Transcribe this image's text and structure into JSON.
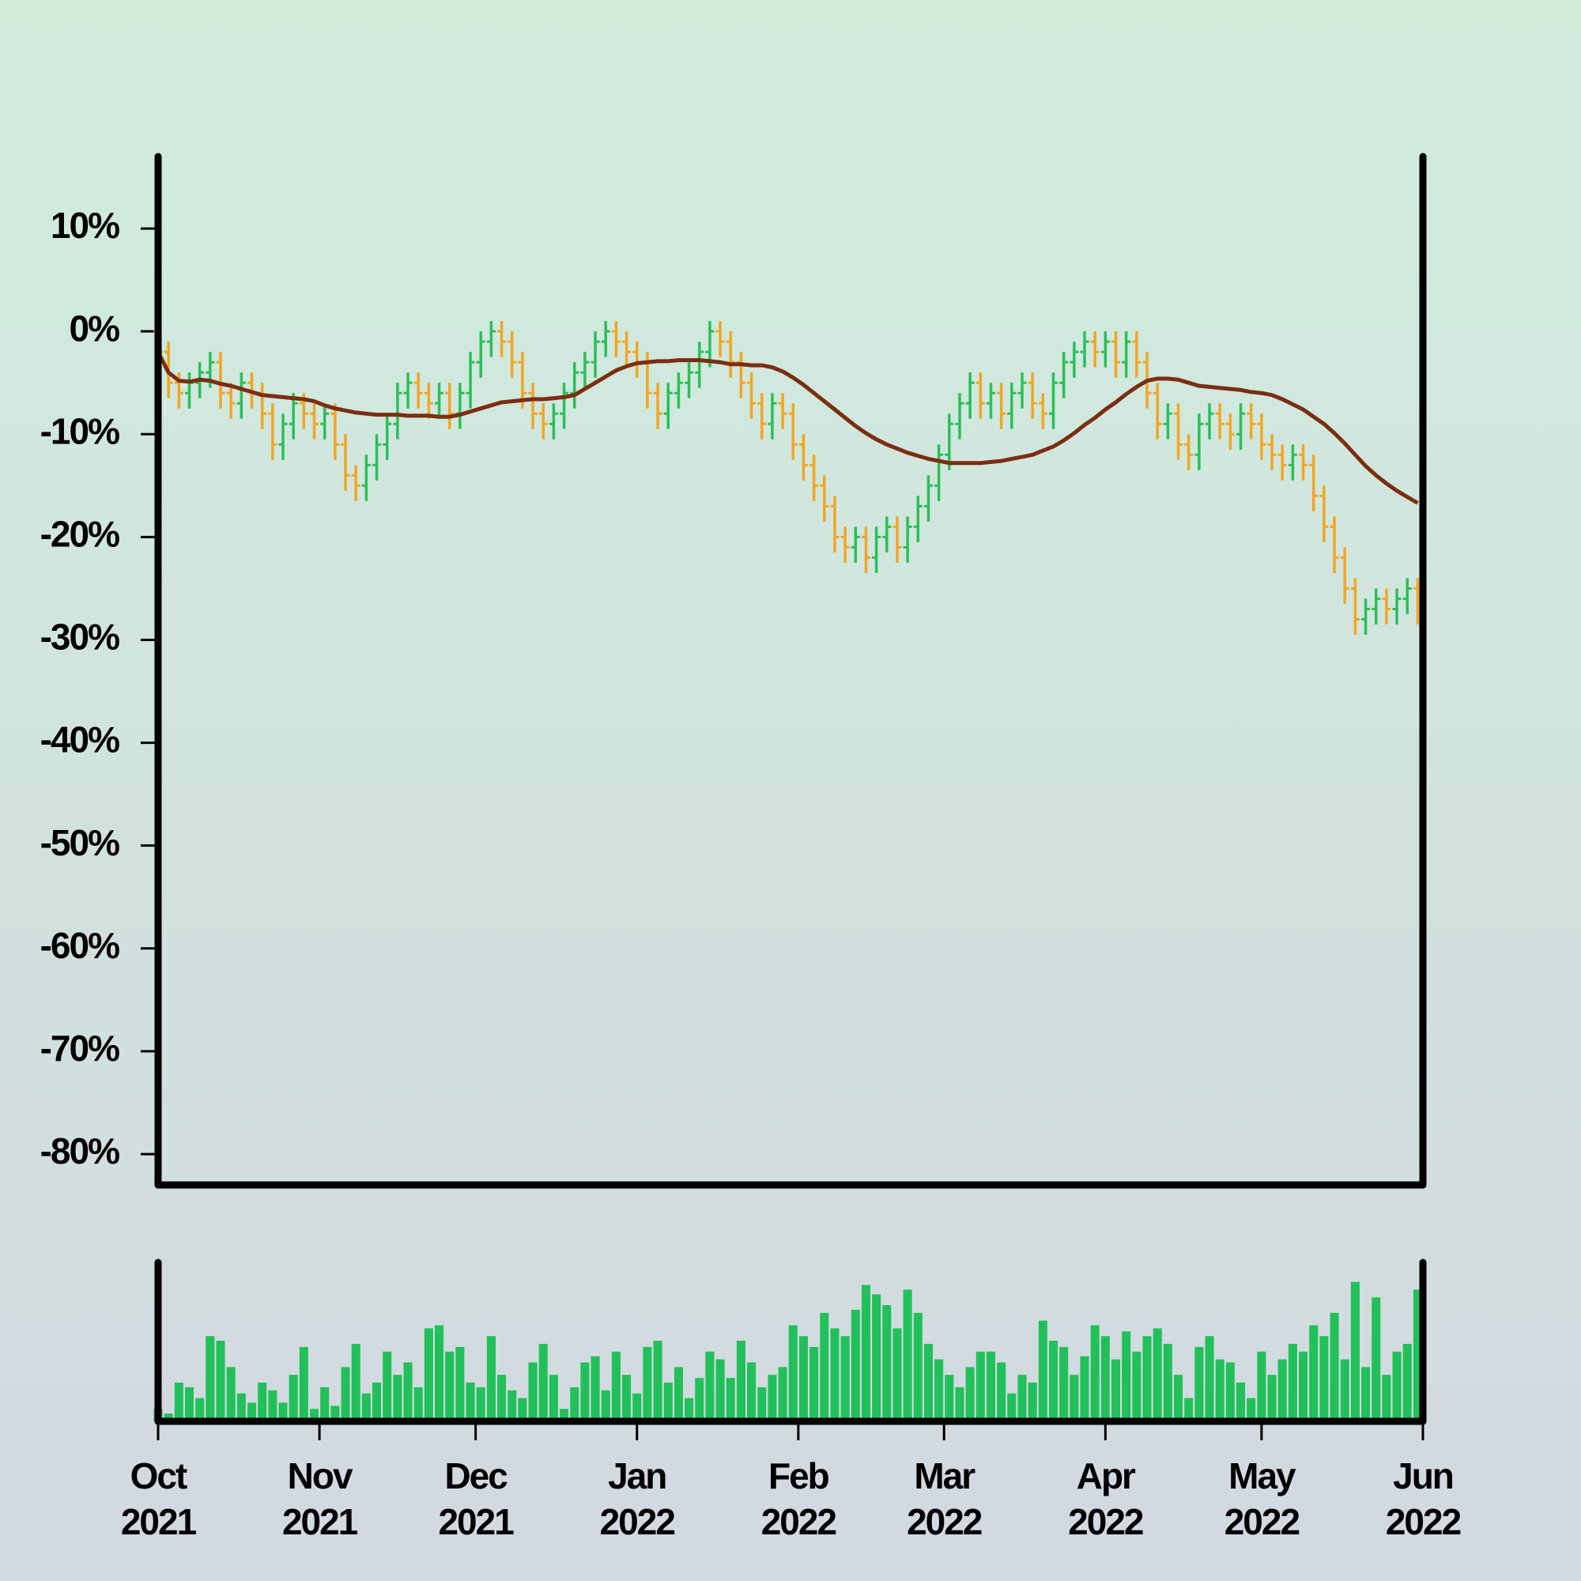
{
  "chart_data": {
    "type": "ohlc",
    "ylim": [
      -83,
      17
    ],
    "yticks": [
      {
        "value": 10,
        "label": "10%"
      },
      {
        "value": 0,
        "label": "0%"
      },
      {
        "value": -10,
        "label": "-10%"
      },
      {
        "value": -20,
        "label": "-20%"
      },
      {
        "value": -30,
        "label": "-30%"
      },
      {
        "value": -40,
        "label": "-40%"
      },
      {
        "value": -50,
        "label": "-50%"
      },
      {
        "value": -60,
        "label": "-60%"
      },
      {
        "value": -70,
        "label": "-70%"
      },
      {
        "value": -80,
        "label": "-80%"
      }
    ],
    "xlim": [
      0,
      121.5
    ],
    "xticks": [
      {
        "value": 0,
        "label": "Oct\n2021"
      },
      {
        "value": 15.5,
        "label": "Nov\n2021"
      },
      {
        "value": 30.5,
        "label": "Dec\n2021"
      },
      {
        "value": 46,
        "label": "Jan\n2022"
      },
      {
        "value": 61.5,
        "label": "Feb\n2022"
      },
      {
        "value": 75.5,
        "label": "Mar\n2022"
      },
      {
        "value": 91,
        "label": "Apr\n2022"
      },
      {
        "value": 106,
        "label": "May\n2022"
      },
      {
        "value": 121.5,
        "label": "Jun\n2022"
      }
    ],
    "up_color": "#2bbf5a",
    "down_color": "#f2a623",
    "open": [
      0,
      -2,
      -5,
      -6,
      -5,
      -4,
      -3,
      -6,
      -7,
      -5,
      -6,
      -8,
      -11,
      -9,
      -7,
      -8,
      -9,
      -8,
      -11,
      -14,
      -15,
      -13,
      -11,
      -9,
      -6,
      -5,
      -6,
      -7,
      -6,
      -8,
      -6,
      -3,
      -1,
      0,
      -1,
      -3,
      -6,
      -8,
      -9,
      -8,
      -6,
      -4,
      -3,
      -1,
      0,
      -1,
      -2,
      -3,
      -6,
      -8,
      -6,
      -5,
      -4,
      -2,
      0,
      -1,
      -3,
      -5,
      -7,
      -9,
      -7,
      -8,
      -11,
      -13,
      -15,
      -17,
      -20,
      -21,
      -20,
      -22,
      -20,
      -19,
      -21,
      -19,
      -17,
      -15,
      -12,
      -9,
      -7,
      -5,
      -7,
      -6,
      -8,
      -6,
      -5,
      -7,
      -8,
      -5,
      -3,
      -2,
      -1,
      -2,
      -1,
      -3,
      -1,
      -3,
      -6,
      -9,
      -8,
      -11,
      -12,
      -9,
      -8,
      -9,
      -10,
      -8,
      -9,
      -11,
      -12,
      -13,
      -12,
      -13,
      -16,
      -19,
      -22,
      -25,
      -28,
      -27,
      -26,
      -27,
      -26,
      -25
    ],
    "high": [
      1,
      -1,
      -4,
      -4,
      -3,
      -2,
      -2,
      -5,
      -4,
      -4,
      -5,
      -7,
      -8,
      -6,
      -6,
      -7,
      -7,
      -7,
      -10,
      -13,
      -12,
      -10,
      -8,
      -5,
      -4,
      -4,
      -5,
      -5,
      -5,
      -5,
      -2,
      0,
      1,
      1,
      0,
      -2,
      -5,
      -7,
      -7,
      -5,
      -3,
      -2,
      0,
      1,
      1,
      0,
      -1,
      -2,
      -5,
      -5,
      -4,
      -3,
      -1,
      1,
      1,
      0,
      -2,
      -4,
      -6,
      -6,
      -6,
      -7,
      -10,
      -12,
      -14,
      -16,
      -19,
      -19,
      -19,
      -19,
      -18,
      -18,
      -18,
      -16,
      -14,
      -11,
      -8,
      -6,
      -4,
      -4,
      -5,
      -5,
      -5,
      -4,
      -4,
      -6,
      -4,
      -2,
      -1,
      0,
      0,
      0,
      0,
      0,
      0,
      -2,
      -5,
      -7,
      -7,
      -10,
      -8,
      -7,
      -7,
      -8,
      -7,
      -7,
      -8,
      -10,
      -11,
      -11,
      -11,
      -12,
      -15,
      -18,
      -21,
      -24,
      -26,
      -25,
      -25,
      -25,
      -24,
      -24
    ],
    "low": [
      -3.5,
      -6.5,
      -7.5,
      -7.5,
      -6.5,
      -5.5,
      -7.5,
      -8.5,
      -8.5,
      -7.5,
      -9.5,
      -12.5,
      -12.5,
      -10.5,
      -9.5,
      -10.5,
      -10.5,
      -12.5,
      -15.5,
      -16.5,
      -16.5,
      -14.5,
      -12.5,
      -10.5,
      -7.5,
      -7.5,
      -8.5,
      -8.5,
      -9.5,
      -9.5,
      -7.5,
      -4.5,
      -2.5,
      -2.5,
      -4.5,
      -7.5,
      -9.5,
      -10.5,
      -10.5,
      -9.5,
      -7.5,
      -5.5,
      -4.5,
      -2.5,
      -2.5,
      -3.5,
      -4.5,
      -7.5,
      -9.5,
      -9.5,
      -7.5,
      -6.5,
      -5.5,
      -3.5,
      -2.5,
      -4.5,
      -6.5,
      -8.5,
      -10.5,
      -10.5,
      -9.5,
      -12.5,
      -14.5,
      -16.5,
      -18.5,
      -21.5,
      -22.5,
      -22.5,
      -23.5,
      -23.5,
      -21.5,
      -22.5,
      -22.5,
      -20.5,
      -18.5,
      -16.5,
      -13.5,
      -10.5,
      -8.5,
      -8.5,
      -8.5,
      -9.5,
      -9.5,
      -7.5,
      -8.5,
      -9.5,
      -9.5,
      -6.5,
      -4.5,
      -3.5,
      -3.5,
      -3.5,
      -4.5,
      -4.5,
      -4.5,
      -7.5,
      -10.5,
      -10.5,
      -12.5,
      -13.5,
      -13.5,
      -10.5,
      -10.5,
      -11.5,
      -11.5,
      -10.5,
      -12.5,
      -13.5,
      -14.5,
      -14.5,
      -14.5,
      -17.5,
      -20.5,
      -23.5,
      -26.5,
      -29.5,
      -29.5,
      -28.5,
      -28.5,
      -28.5,
      -27.5,
      -28.5
    ],
    "close": [
      -2,
      -5,
      -6,
      -5,
      -4,
      -3,
      -6,
      -7,
      -5,
      -6,
      -8,
      -11,
      -9,
      -7,
      -8,
      -9,
      -8,
      -11,
      -14,
      -15,
      -13,
      -11,
      -9,
      -6,
      -5,
      -6,
      -7,
      -6,
      -8,
      -6,
      -3,
      -1,
      0,
      -1,
      -3,
      -6,
      -8,
      -9,
      -8,
      -6,
      -4,
      -3,
      -1,
      0,
      -1,
      -2,
      -3,
      -6,
      -8,
      -6,
      -5,
      -4,
      -2,
      0,
      -1,
      -3,
      -5,
      -7,
      -9,
      -7,
      -8,
      -11,
      -13,
      -15,
      -17,
      -20,
      -21,
      -20,
      -22,
      -20,
      -19,
      -21,
      -19,
      -17,
      -15,
      -12,
      -9,
      -7,
      -5,
      -7,
      -6,
      -8,
      -6,
      -5,
      -7,
      -8,
      -5,
      -3,
      -2,
      -1,
      -2,
      -1,
      -3,
      -1,
      -3,
      -6,
      -9,
      -8,
      -11,
      -12,
      -9,
      -8,
      -9,
      -10,
      -8,
      -9,
      -11,
      -12,
      -13,
      -12,
      -13,
      -16,
      -19,
      -22,
      -25,
      -28,
      -27,
      -26,
      -27,
      -26,
      -25,
      -27
    ],
    "moving_average": {
      "color": "#7b2d12",
      "values": [
        -2,
        -4,
        -4.8,
        -4.9,
        -4.7,
        -4.8,
        -5.1,
        -5.3,
        -5.6,
        -5.9,
        -6.2,
        -6.3,
        -6.4,
        -6.5,
        -6.6,
        -6.8,
        -7.2,
        -7.5,
        -7.7,
        -7.9,
        -8,
        -8.1,
        -8.1,
        -8.1,
        -8.2,
        -8.2,
        -8.2,
        -8.3,
        -8.3,
        -8.1,
        -7.8,
        -7.5,
        -7.2,
        -6.9,
        -6.8,
        -6.7,
        -6.6,
        -6.6,
        -6.5,
        -6.4,
        -6.2,
        -5.6,
        -5,
        -4.4,
        -3.8,
        -3.4,
        -3.1,
        -3,
        -2.9,
        -2.9,
        -2.8,
        -2.8,
        -2.8,
        -2.9,
        -3,
        -3.2,
        -3.2,
        -3.3,
        -3.3,
        -3.5,
        -3.9,
        -4.5,
        -5.2,
        -6,
        -6.8,
        -7.6,
        -8.4,
        -9.2,
        -9.9,
        -10.5,
        -11,
        -11.4,
        -11.8,
        -12.1,
        -12.4,
        -12.6,
        -12.8,
        -12.8,
        -12.8,
        -12.8,
        -12.7,
        -12.6,
        -12.4,
        -12.2,
        -12,
        -11.6,
        -11.2,
        -10.6,
        -9.9,
        -9.1,
        -8.4,
        -7.6,
        -6.9,
        -6.1,
        -5.4,
        -4.8,
        -4.6,
        -4.6,
        -4.7,
        -5,
        -5.3,
        -5.4,
        -5.5,
        -5.6,
        -5.7,
        -5.9,
        -6,
        -6.2,
        -6.6,
        -7.1,
        -7.6,
        -8.3,
        -9,
        -9.9,
        -10.9,
        -12,
        -13.1,
        -14,
        -14.8,
        -15.5,
        -16.1,
        -16.7
      ]
    },
    "volume": {
      "color": "#22c05a",
      "ylim": [
        0,
        100
      ],
      "values": [
        8,
        5,
        25,
        22,
        15,
        55,
        52,
        35,
        18,
        12,
        25,
        20,
        12,
        30,
        48,
        8,
        22,
        10,
        35,
        50,
        18,
        25,
        45,
        30,
        38,
        22,
        60,
        62,
        45,
        48,
        25,
        22,
        55,
        30,
        20,
        15,
        38,
        50,
        30,
        8,
        22,
        38,
        42,
        20,
        45,
        30,
        18,
        48,
        52,
        25,
        35,
        15,
        28,
        45,
        40,
        28,
        52,
        38,
        22,
        30,
        35,
        62,
        55,
        48,
        70,
        60,
        55,
        72,
        88,
        82,
        75,
        60,
        85,
        70,
        50,
        40,
        30,
        22,
        35,
        45,
        45,
        38,
        18,
        30,
        25,
        65,
        52,
        48,
        30,
        42,
        62,
        55,
        40,
        58,
        45,
        55,
        60,
        50,
        30,
        15,
        48,
        55,
        40,
        38,
        25,
        15,
        45,
        30,
        40,
        50,
        45,
        62,
        55,
        70,
        40,
        90,
        35,
        80,
        30,
        45,
        50,
        85
      ]
    }
  }
}
